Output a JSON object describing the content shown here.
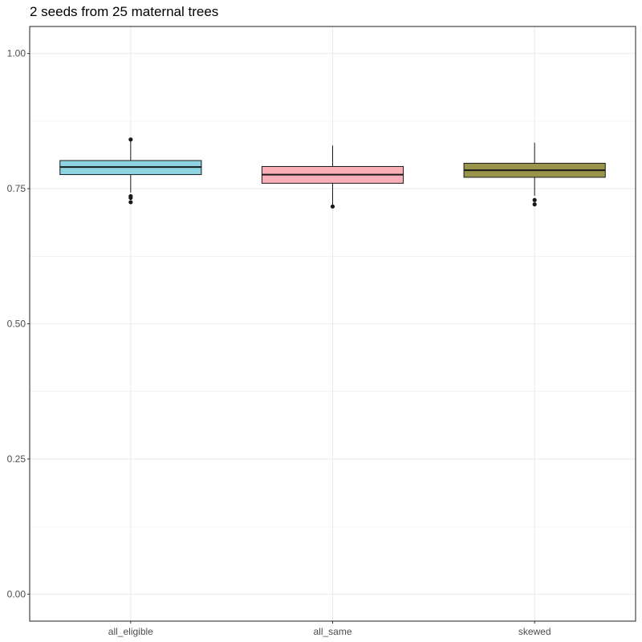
{
  "chart_data": {
    "type": "box",
    "title": "2 seeds from 25 maternal trees",
    "xlabel": "",
    "ylabel": "",
    "ylim": [
      -0.05,
      1.05
    ],
    "yticks": [
      0.0,
      0.25,
      0.5,
      0.75,
      1.0
    ],
    "ytick_labels": [
      "0.00",
      "0.25",
      "0.50",
      "0.75",
      "1.00"
    ],
    "grid": true,
    "legend": "none",
    "categories": [
      "all_eligible",
      "all_same",
      "skewed"
    ],
    "boxes": [
      {
        "category": "all_eligible",
        "fill": "#8dd3e1",
        "whisker_low": 0.743,
        "q1": 0.776,
        "median": 0.79,
        "q3": 0.802,
        "whisker_high": 0.838,
        "outliers": [
          0.841,
          0.736,
          0.733,
          0.725
        ]
      },
      {
        "category": "all_same",
        "fill": "#f9aeb8",
        "whisker_low": 0.72,
        "q1": 0.76,
        "median": 0.776,
        "q3": 0.791,
        "whisker_high": 0.83,
        "outliers": [
          0.717
        ]
      },
      {
        "category": "skewed",
        "fill": "#9a944a",
        "whisker_low": 0.737,
        "q1": 0.771,
        "median": 0.784,
        "q3": 0.797,
        "whisker_high": 0.835,
        "outliers": [
          0.729,
          0.721
        ]
      }
    ],
    "colors": {
      "grid": "#ebebeb",
      "panel_border": "#333333",
      "box_line": "#1a1a1a",
      "tick_text": "#4d4d4d"
    }
  }
}
